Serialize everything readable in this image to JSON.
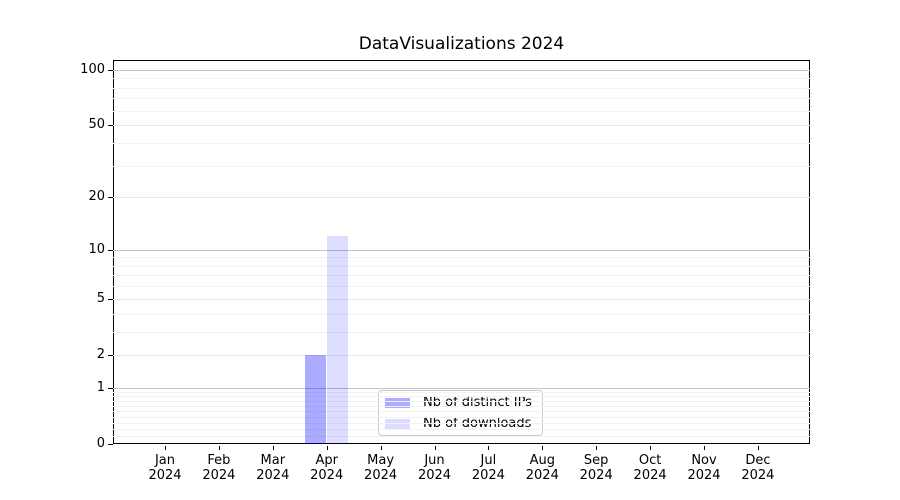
{
  "chart_data": {
    "type": "bar",
    "title": "DataVisualizations 2024",
    "x_categories": [
      "Jan",
      "Feb",
      "Mar",
      "Apr",
      "May",
      "Jun",
      "Jul",
      "Aug",
      "Sep",
      "Oct",
      "Nov",
      "Dec"
    ],
    "x_year_label": "2024",
    "series": [
      {
        "name": "Nb of distinct IPs",
        "color": "rgba(0,0,255,0.33)",
        "values": [
          0,
          0,
          0,
          2,
          0,
          0,
          0,
          0,
          0,
          0,
          0,
          0
        ]
      },
      {
        "name": "Nb of downloads",
        "color": "rgba(0,0,255,0.135)",
        "values": [
          0,
          0,
          0,
          12,
          0,
          0,
          0,
          0,
          0,
          0,
          0,
          0
        ]
      }
    ],
    "y_scale": "log1p",
    "y_ticks": [
      0,
      1,
      2,
      5,
      10,
      20,
      50,
      100
    ],
    "ylim": [
      0,
      113
    ],
    "grid": true,
    "gridline_colors": {
      "major": "#c3c3c3",
      "mid": "#e9e9e9",
      "minor": "#f2f2f2"
    },
    "y_minor_gridlines": [
      0.1,
      0.2,
      0.3,
      0.4,
      0.5,
      0.6,
      0.7,
      0.8,
      0.9,
      3,
      4,
      6,
      7,
      8,
      9,
      30,
      40,
      60,
      70,
      80,
      90
    ],
    "y_mid_gridlines": [
      2,
      5,
      20,
      50
    ],
    "y_major_gridlines": [
      1,
      10,
      100
    ],
    "legend_position": "lower center"
  }
}
